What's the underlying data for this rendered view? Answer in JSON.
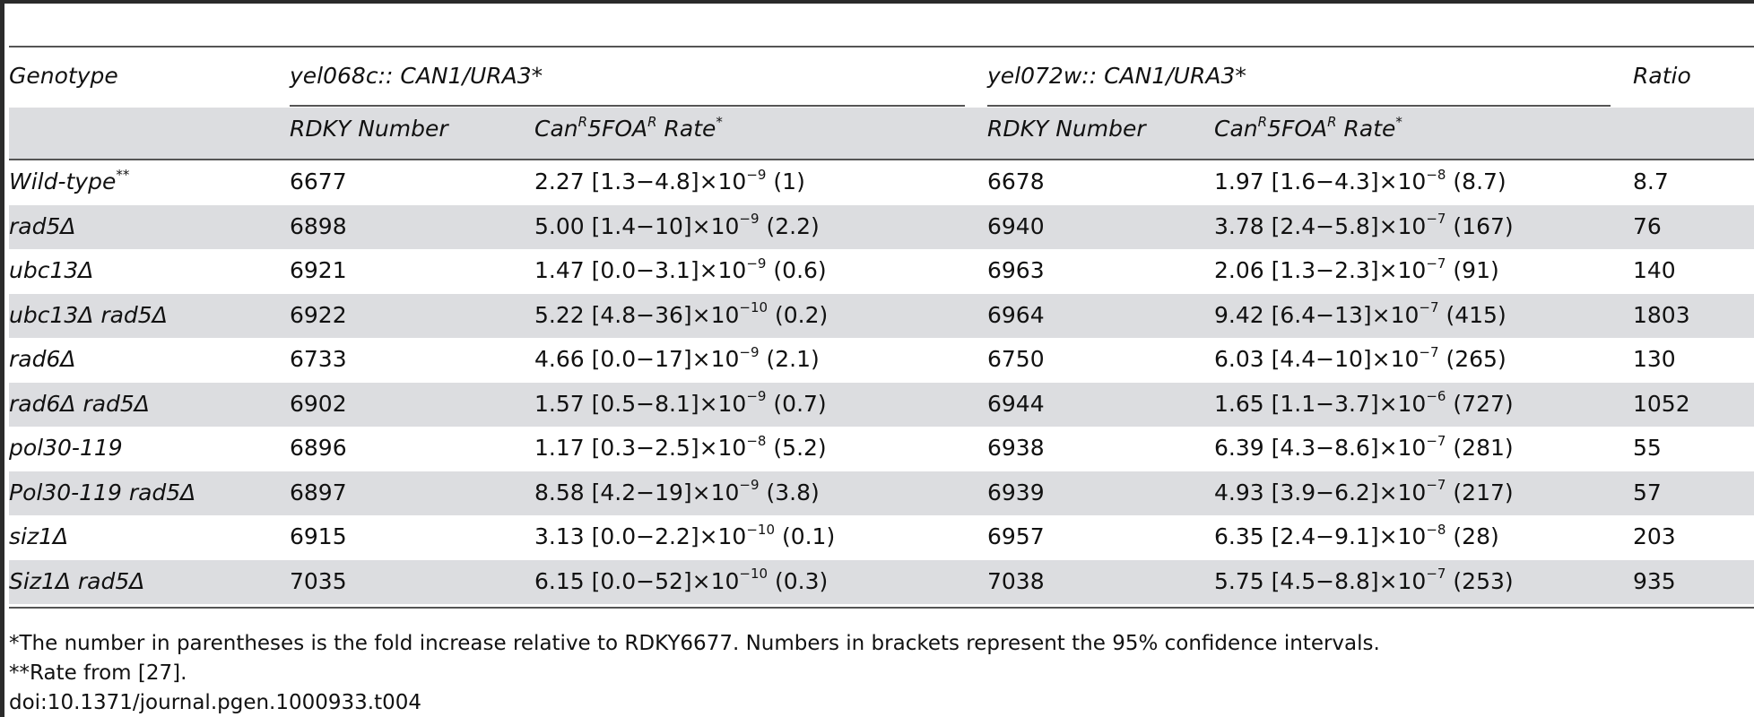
{
  "header": {
    "genotype": "Genotype",
    "group1": "yel068c:: CAN1/URA3*",
    "group2": "yel072w:: CAN1/URA3*",
    "ratio": "Ratio",
    "rdky_number": "RDKY Number",
    "rate_prefix_1": "Can",
    "rate_sup_1": "R",
    "rate_prefix_2": "5FOA",
    "rate_sup_2": "R",
    "rate_suffix": " Rate",
    "rate_star": "*"
  },
  "rows": [
    {
      "genotype": "Wild-type",
      "genotype_sup": "**",
      "rdky1": "6677",
      "rate1": "2.27 [1.3−4.8]×10",
      "exp1": "−9",
      "fold1": " (1)",
      "rdky2": "6678",
      "rate2": "1.97 [1.6−4.3]×10",
      "exp2": "−8",
      "fold2": " (8.7)",
      "ratio": "8.7"
    },
    {
      "genotype": "rad5Δ",
      "genotype_sup": "",
      "rdky1": "6898",
      "rate1": "5.00 [1.4−10]×10",
      "exp1": "−9",
      "fold1": " (2.2)",
      "rdky2": "6940",
      "rate2": "3.78 [2.4−5.8]×10",
      "exp2": "−7",
      "fold2": " (167)",
      "ratio": "76"
    },
    {
      "genotype": "ubc13Δ",
      "genotype_sup": "",
      "rdky1": "6921",
      "rate1": "1.47 [0.0−3.1]×10",
      "exp1": "−9",
      "fold1": " (0.6)",
      "rdky2": "6963",
      "rate2": "2.06 [1.3−2.3]×10",
      "exp2": "−7",
      "fold2": " (91)",
      "ratio": "140"
    },
    {
      "genotype": "ubc13Δ rad5Δ",
      "genotype_sup": "",
      "rdky1": "6922",
      "rate1": "5.22 [4.8−36]×10",
      "exp1": "−10",
      "fold1": " (0.2)",
      "rdky2": "6964",
      "rate2": "9.42 [6.4−13]×10",
      "exp2": "−7",
      "fold2": " (415)",
      "ratio": "1803"
    },
    {
      "genotype": "rad6Δ",
      "genotype_sup": "",
      "rdky1": "6733",
      "rate1": "4.66 [0.0−17]×10",
      "exp1": "−9",
      "fold1": " (2.1)",
      "rdky2": "6750",
      "rate2": "6.03 [4.4−10]×10",
      "exp2": "−7",
      "fold2": " (265)",
      "ratio": "130"
    },
    {
      "genotype": "rad6Δ rad5Δ",
      "genotype_sup": "",
      "rdky1": "6902",
      "rate1": "1.57 [0.5−8.1]×10",
      "exp1": "−9",
      "fold1": " (0.7)",
      "rdky2": "6944",
      "rate2": "1.65 [1.1−3.7]×10",
      "exp2": "−6",
      "fold2": " (727)",
      "ratio": "1052"
    },
    {
      "genotype": "pol30-119",
      "genotype_sup": "",
      "rdky1": "6896",
      "rate1": "1.17 [0.3−2.5]×10",
      "exp1": "−8",
      "fold1": " (5.2)",
      "rdky2": "6938",
      "rate2": "6.39 [4.3−8.6]×10",
      "exp2": "−7",
      "fold2": " (281)",
      "ratio": "55"
    },
    {
      "genotype": "Pol30-119 rad5Δ",
      "genotype_sup": "",
      "rdky1": "6897",
      "rate1": "8.58 [4.2−19]×10",
      "exp1": "−9",
      "fold1": " (3.8)",
      "rdky2": "6939",
      "rate2": "4.93 [3.9−6.2]×10",
      "exp2": "−7",
      "fold2": " (217)",
      "ratio": "57"
    },
    {
      "genotype": "siz1Δ",
      "genotype_sup": "",
      "rdky1": "6915",
      "rate1": "3.13 [0.0−2.2]×10",
      "exp1": "−10",
      "fold1": " (0.1)",
      "rdky2": "6957",
      "rate2": "6.35 [2.4−9.1]×10",
      "exp2": "−8",
      "fold2": " (28)",
      "ratio": "203"
    },
    {
      "genotype": "Siz1Δ rad5Δ",
      "genotype_sup": "",
      "rdky1": "7035",
      "rate1": "6.15 [0.0−52]×10",
      "exp1": "−10",
      "fold1": " (0.3)",
      "rdky2": "7038",
      "rate2": "5.75 [4.5−8.8]×10",
      "exp2": "−7",
      "fold2": " (253)",
      "ratio": "935"
    }
  ],
  "footnotes": {
    "note1": "*The number in parentheses is the fold increase relative to RDKY6677. Numbers in brackets represent the 95% confidence intervals.",
    "note2": "**Rate from [27].",
    "doi": "doi:10.1371/journal.pgen.1000933.t004"
  }
}
